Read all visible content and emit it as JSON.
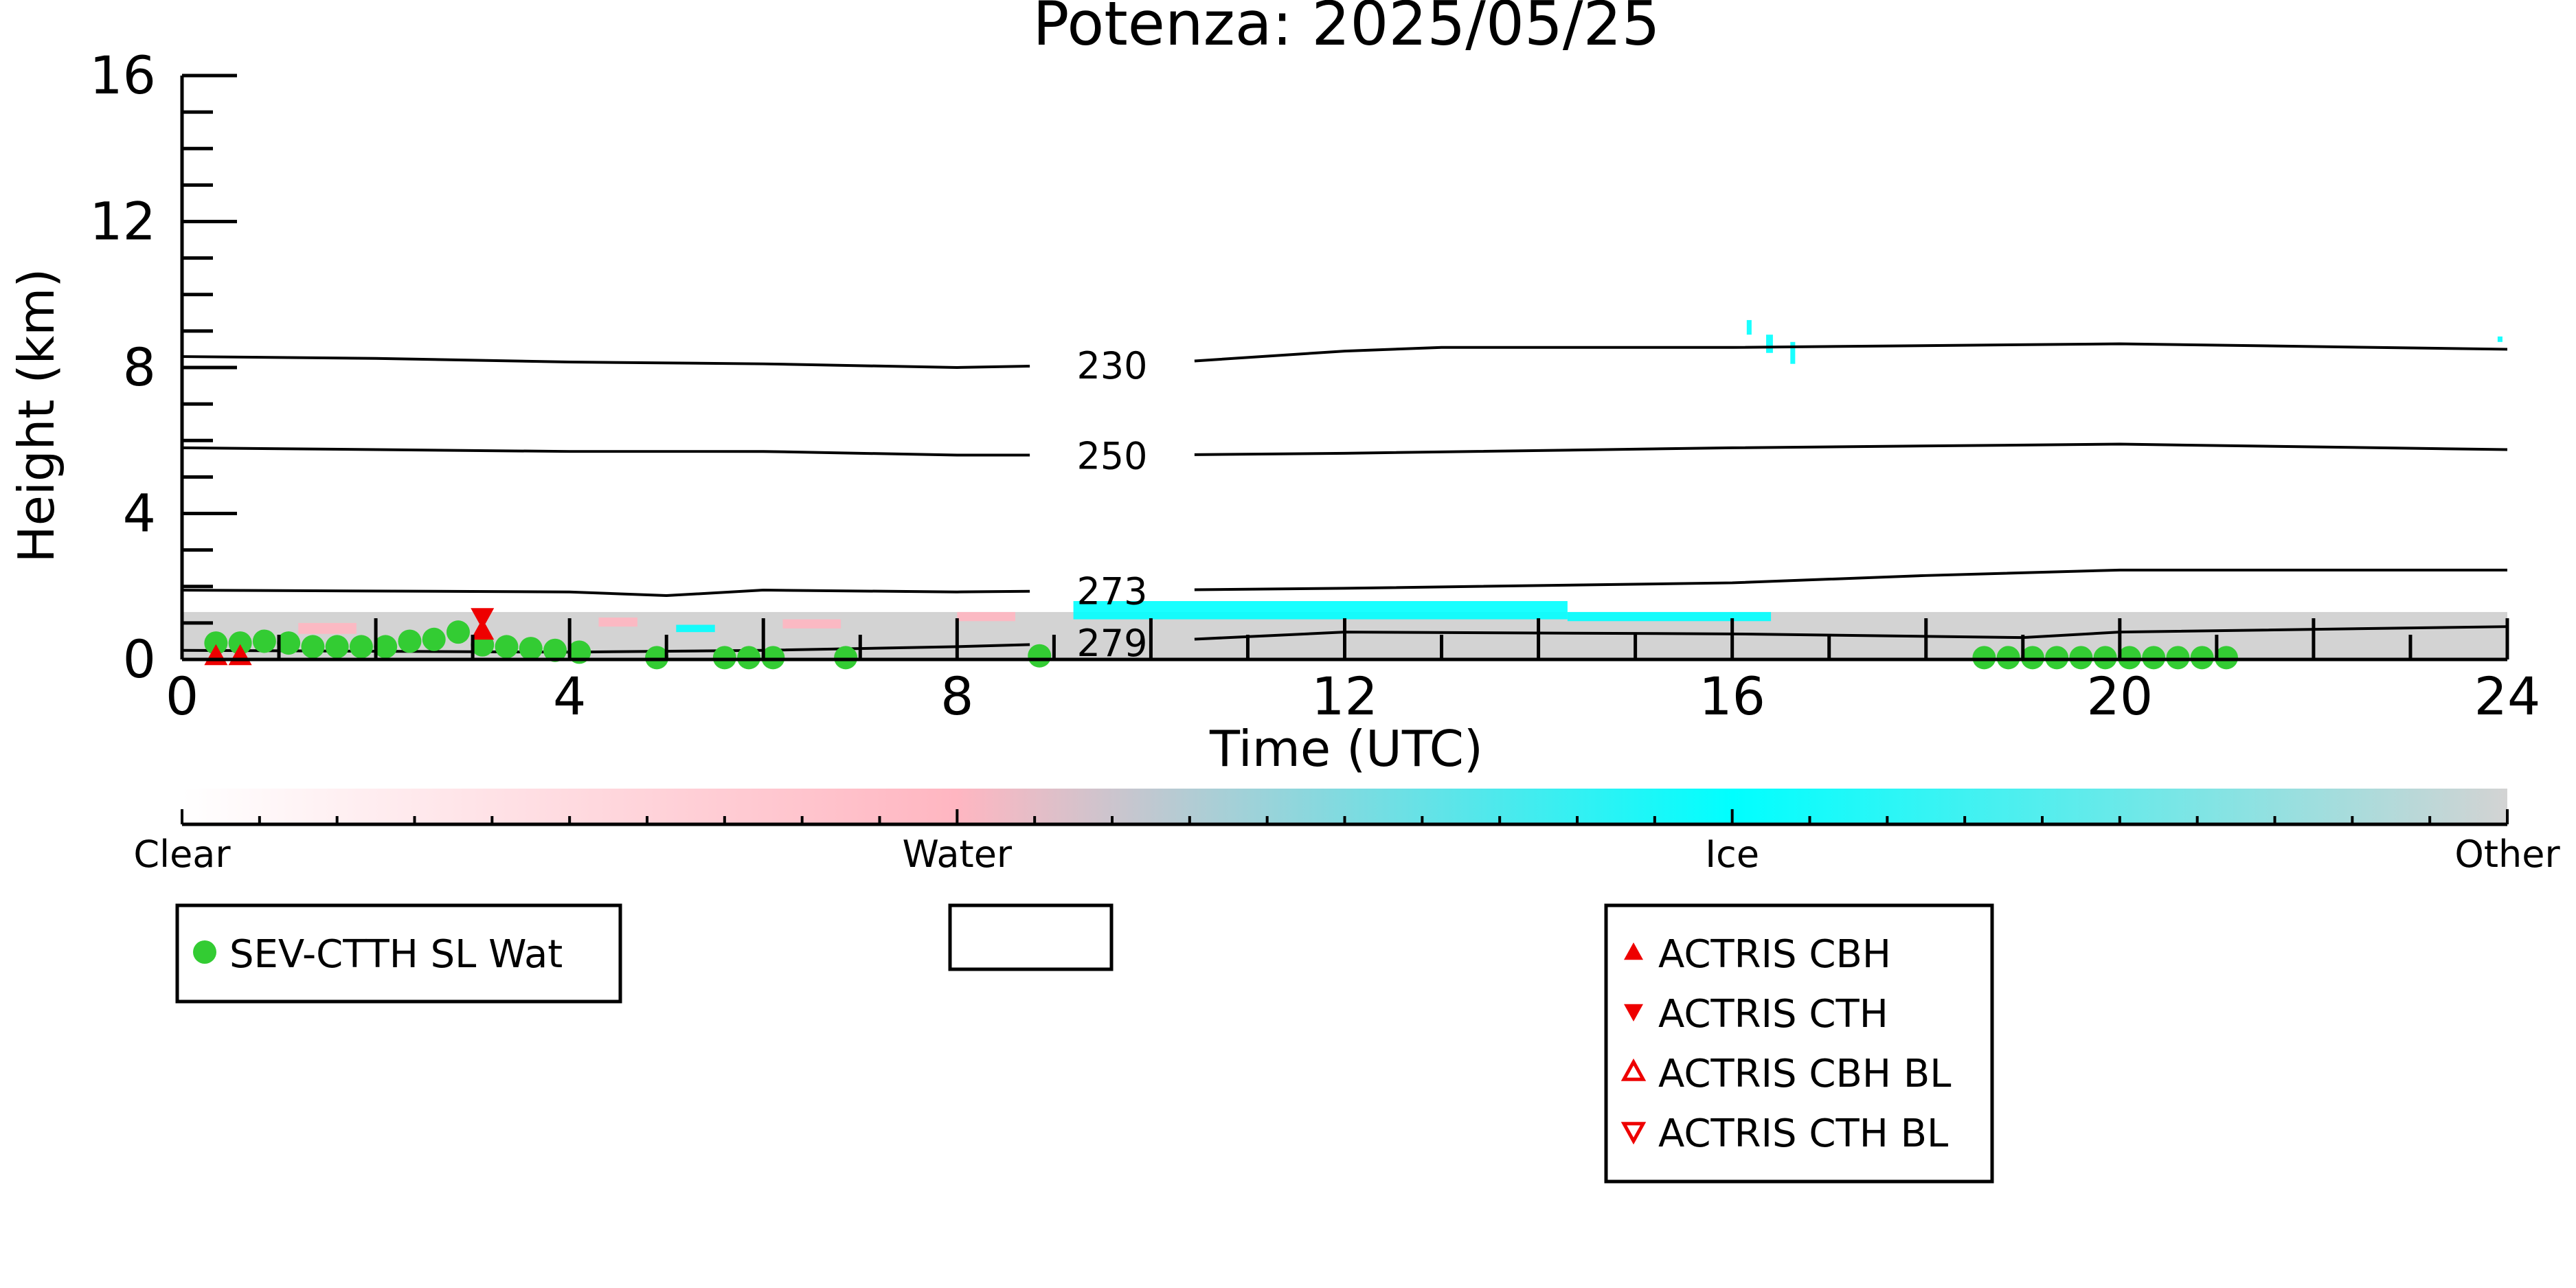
{
  "chart_data": {
    "type": "area",
    "title": "Potenza: 2025/05/25",
    "xlabel": "Time (UTC)",
    "ylabel": "Height (km)",
    "xlim": [
      0,
      24
    ],
    "ylim": [
      0,
      16
    ],
    "x_ticks": [
      0,
      4,
      8,
      12,
      16,
      20,
      24
    ],
    "y_ticks": [
      0,
      4,
      8,
      12,
      16
    ],
    "x_tick_labels": [
      "0",
      "4",
      "8",
      "12",
      "16",
      "20",
      "24"
    ],
    "y_tick_labels": [
      "0",
      "4",
      "8",
      "12",
      "16"
    ],
    "grid": false,
    "isotherms": [
      {
        "label": "230",
        "label_x": 9.6,
        "points": [
          [
            0,
            8.3
          ],
          [
            2,
            8.25
          ],
          [
            4,
            8.15
          ],
          [
            6,
            8.1
          ],
          [
            8,
            8.0
          ],
          [
            10,
            8.1
          ],
          [
            12,
            8.45
          ],
          [
            13,
            8.55
          ],
          [
            16,
            8.55
          ],
          [
            20,
            8.65
          ],
          [
            24,
            8.5
          ]
        ]
      },
      {
        "label": "250",
        "label_x": 9.6,
        "points": [
          [
            0,
            5.8
          ],
          [
            2,
            5.75
          ],
          [
            4,
            5.7
          ],
          [
            6,
            5.7
          ],
          [
            8,
            5.6
          ],
          [
            10,
            5.6
          ],
          [
            12,
            5.65
          ],
          [
            16,
            5.8
          ],
          [
            20,
            5.9
          ],
          [
            24,
            5.75
          ]
        ]
      },
      {
        "label": "273",
        "label_x": 9.6,
        "points": [
          [
            0,
            1.9
          ],
          [
            4,
            1.85
          ],
          [
            5,
            1.75
          ],
          [
            6,
            1.9
          ],
          [
            8,
            1.85
          ],
          [
            10,
            1.9
          ],
          [
            12,
            1.95
          ],
          [
            16,
            2.1
          ],
          [
            18,
            2.3
          ],
          [
            20,
            2.45
          ],
          [
            24,
            2.45
          ]
        ]
      },
      {
        "label": "279",
        "label_x": 9.6,
        "points": [
          [
            0,
            0.25
          ],
          [
            4,
            0.2
          ],
          [
            6,
            0.25
          ],
          [
            8,
            0.35
          ],
          [
            10,
            0.5
          ],
          [
            12,
            0.75
          ],
          [
            16,
            0.7
          ],
          [
            19,
            0.6
          ],
          [
            20,
            0.75
          ],
          [
            24,
            0.9
          ]
        ]
      }
    ],
    "series": [
      {
        "name": "SEV-CTTH SL Wat",
        "marker": "filled-circle",
        "color": "#33cc33",
        "points": [
          [
            0.35,
            0.45
          ],
          [
            0.6,
            0.45
          ],
          [
            0.85,
            0.5
          ],
          [
            1.1,
            0.45
          ],
          [
            1.35,
            0.35
          ],
          [
            1.6,
            0.35
          ],
          [
            1.85,
            0.35
          ],
          [
            2.1,
            0.35
          ],
          [
            2.35,
            0.5
          ],
          [
            2.6,
            0.55
          ],
          [
            2.85,
            0.75
          ],
          [
            3.1,
            0.4
          ],
          [
            3.35,
            0.35
          ],
          [
            3.6,
            0.3
          ],
          [
            3.85,
            0.25
          ],
          [
            4.1,
            0.2
          ],
          [
            4.9,
            0.05
          ],
          [
            5.6,
            0.05
          ],
          [
            5.85,
            0.05
          ],
          [
            6.1,
            0.05
          ],
          [
            6.85,
            0.05
          ],
          [
            8.85,
            0.1
          ],
          [
            18.6,
            0.05
          ],
          [
            18.85,
            0.05
          ],
          [
            19.1,
            0.05
          ],
          [
            19.35,
            0.05
          ],
          [
            19.6,
            0.05
          ],
          [
            19.85,
            0.05
          ],
          [
            20.1,
            0.05
          ],
          [
            20.35,
            0.05
          ],
          [
            20.6,
            0.05
          ],
          [
            20.85,
            0.05
          ],
          [
            21.1,
            0.05
          ]
        ]
      },
      {
        "name": "ACTRIS CBH",
        "marker": "filled-triangle-up",
        "color": "#ee0000",
        "points": [
          [
            3.1,
            0.8
          ],
          [
            0.35,
            0.1
          ],
          [
            0.6,
            0.1
          ]
        ]
      },
      {
        "name": "ACTRIS CTH",
        "marker": "filled-triangle-down",
        "color": "#ee0000",
        "points": [
          [
            3.1,
            1.15
          ]
        ]
      },
      {
        "name": "ACTRIS CBH BL",
        "marker": "open-triangle-up",
        "color": "#ee0000",
        "points": []
      },
      {
        "name": "ACTRIS CTH BL",
        "marker": "open-triangle-down",
        "color": "#ee0000",
        "points": []
      }
    ],
    "cloud_classes": [
      "Clear",
      "Water",
      "Ice",
      "Other"
    ],
    "cloud_class_colors": {
      "Clear": "#ffffff",
      "Water": "#ffb6c1",
      "Ice": "#00ffff",
      "Other": "#d3d3d3"
    },
    "classification_layers": [
      {
        "class": "Other",
        "x_start": 0,
        "x_end": 24,
        "y_bottom": 0,
        "y_top": 1.3
      },
      {
        "class": "Water",
        "x_start": 1.2,
        "x_end": 1.8,
        "y_bottom": 0.7,
        "y_top": 1.0
      },
      {
        "class": "Water",
        "x_start": 4.3,
        "x_end": 4.7,
        "y_bottom": 0.9,
        "y_top": 1.15
      },
      {
        "class": "Water",
        "x_start": 6.2,
        "x_end": 6.8,
        "y_bottom": 0.85,
        "y_top": 1.1
      },
      {
        "class": "Water",
        "x_start": 8.0,
        "x_end": 8.6,
        "y_bottom": 1.05,
        "y_top": 1.3
      },
      {
        "class": "Ice",
        "x_start": 5.1,
        "x_end": 5.5,
        "y_bottom": 0.75,
        "y_top": 0.95
      },
      {
        "class": "Ice",
        "x_start": 9.2,
        "x_end": 14.3,
        "y_bottom": 1.1,
        "y_top": 1.6
      },
      {
        "class": "Ice",
        "x_start": 14.3,
        "x_end": 16.4,
        "y_bottom": 1.05,
        "y_top": 1.3
      },
      {
        "class": "Ice",
        "x_start": 16.15,
        "x_end": 16.2,
        "y_bottom": 8.9,
        "y_top": 9.3
      },
      {
        "class": "Ice",
        "x_start": 16.35,
        "x_end": 16.42,
        "y_bottom": 8.4,
        "y_top": 8.9
      },
      {
        "class": "Ice",
        "x_start": 16.6,
        "x_end": 16.65,
        "y_bottom": 8.1,
        "y_top": 8.7
      },
      {
        "class": "Ice",
        "x_start": 23.9,
        "x_end": 23.95,
        "y_bottom": 8.7,
        "y_top": 8.85
      }
    ],
    "legends": [
      {
        "entries": [
          "SEV-CTTH SL Wat"
        ],
        "placement": "bottom-left"
      },
      {
        "entries": [],
        "placement": "bottom-center"
      },
      {
        "entries": [
          "ACTRIS CBH",
          "ACTRIS CTH",
          "ACTRIS CBH BL",
          "ACTRIS CTH BL"
        ],
        "placement": "bottom-right"
      }
    ]
  }
}
